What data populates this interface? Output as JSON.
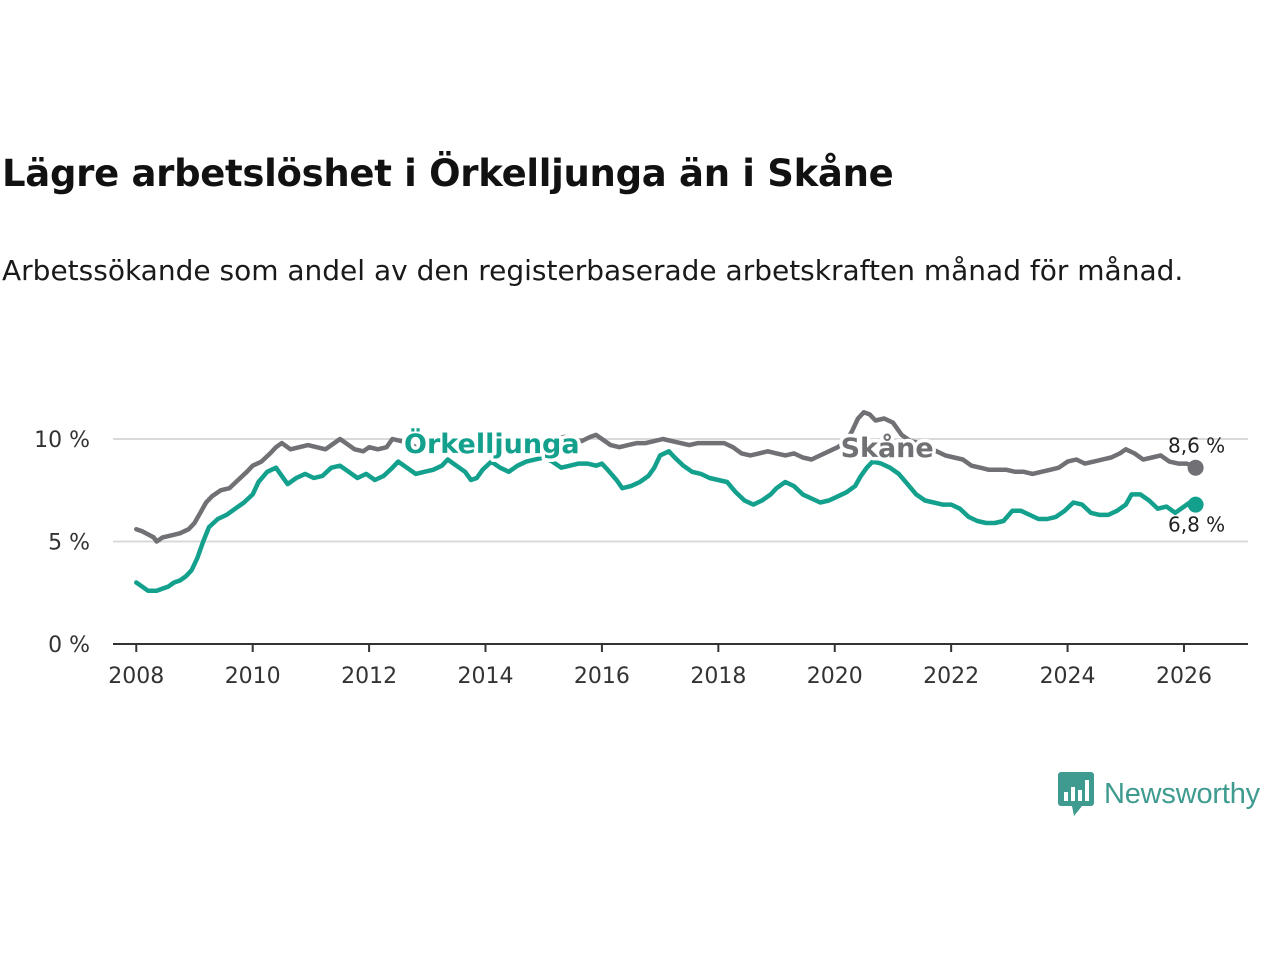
{
  "title": "Lägre arbetslöshet i Örkelljunga än i Skåne",
  "subtitle": "Arbetssökande som andel av den registerbaserade arbetskraften månad för månad.",
  "logo_text": "Newsworthy",
  "colors": {
    "orkelljunga": "#13a08c",
    "skane": "#707075",
    "grid": "#d9d9d9",
    "axis": "#333333"
  },
  "chart_data": {
    "type": "line",
    "title": "Lägre arbetslöshet i Örkelljunga än i Skåne",
    "xlabel": "",
    "ylabel": "",
    "xlim": [
      2007.6,
      2027.1
    ],
    "ylim": [
      0,
      10
    ],
    "y_ticks": [
      0,
      5,
      10
    ],
    "y_tick_labels": [
      "0 %",
      "5 %",
      "10 %"
    ],
    "x_ticks": [
      2008,
      2010,
      2012,
      2014,
      2016,
      2018,
      2020,
      2022,
      2024,
      2026
    ],
    "x_tick_labels": [
      "2008",
      "2010",
      "2012",
      "2014",
      "2016",
      "2018",
      "2020",
      "2022",
      "2024",
      "2026"
    ],
    "series": [
      {
        "name": "Skåne",
        "color": "#707075",
        "end_label": "8,6 %",
        "points": [
          [
            2008.0,
            5.6
          ],
          [
            2008.1,
            5.5
          ],
          [
            2008.3,
            5.2
          ],
          [
            2008.35,
            5.0
          ],
          [
            2008.45,
            5.2
          ],
          [
            2008.6,
            5.3
          ],
          [
            2008.75,
            5.4
          ],
          [
            2008.9,
            5.6
          ],
          [
            2009.0,
            5.9
          ],
          [
            2009.1,
            6.4
          ],
          [
            2009.2,
            6.9
          ],
          [
            2009.3,
            7.2
          ],
          [
            2009.45,
            7.5
          ],
          [
            2009.6,
            7.6
          ],
          [
            2009.75,
            8.0
          ],
          [
            2009.9,
            8.4
          ],
          [
            2010.0,
            8.7
          ],
          [
            2010.15,
            8.9
          ],
          [
            2010.3,
            9.3
          ],
          [
            2010.4,
            9.6
          ],
          [
            2010.5,
            9.8
          ],
          [
            2010.65,
            9.5
          ],
          [
            2010.8,
            9.6
          ],
          [
            2010.95,
            9.7
          ],
          [
            2011.1,
            9.6
          ],
          [
            2011.25,
            9.5
          ],
          [
            2011.4,
            9.8
          ],
          [
            2011.5,
            10.0
          ],
          [
            2011.6,
            9.8
          ],
          [
            2011.75,
            9.5
          ],
          [
            2011.9,
            9.4
          ],
          [
            2012.0,
            9.6
          ],
          [
            2012.15,
            9.5
          ],
          [
            2012.3,
            9.6
          ],
          [
            2012.4,
            10.0
          ],
          [
            2012.55,
            9.9
          ],
          [
            2012.7,
            9.8
          ],
          [
            2012.85,
            9.5
          ],
          [
            2013.0,
            9.6
          ],
          [
            2013.15,
            9.9
          ],
          [
            2013.3,
            10.2
          ],
          [
            2013.45,
            10.0
          ],
          [
            2013.6,
            9.8
          ],
          [
            2013.75,
            9.5
          ],
          [
            2013.9,
            9.4
          ],
          [
            2014.0,
            9.6
          ],
          [
            2014.15,
            9.8
          ],
          [
            2014.3,
            9.7
          ],
          [
            2014.45,
            9.8
          ],
          [
            2014.6,
            10.0
          ],
          [
            2014.75,
            9.8
          ],
          [
            2014.9,
            9.7
          ],
          [
            2015.05,
            9.9
          ],
          [
            2015.2,
            10.0
          ],
          [
            2015.35,
            10.1
          ],
          [
            2015.5,
            10.0
          ],
          [
            2015.65,
            9.9
          ],
          [
            2015.8,
            10.1
          ],
          [
            2015.9,
            10.2
          ],
          [
            2016.0,
            10.0
          ],
          [
            2016.15,
            9.7
          ],
          [
            2016.3,
            9.6
          ],
          [
            2016.45,
            9.7
          ],
          [
            2016.6,
            9.8
          ],
          [
            2016.75,
            9.8
          ],
          [
            2016.9,
            9.9
          ],
          [
            2017.05,
            10.0
          ],
          [
            2017.2,
            9.9
          ],
          [
            2017.35,
            9.8
          ],
          [
            2017.5,
            9.7
          ],
          [
            2017.65,
            9.8
          ],
          [
            2017.8,
            9.8
          ],
          [
            2017.95,
            9.8
          ],
          [
            2018.1,
            9.8
          ],
          [
            2018.25,
            9.6
          ],
          [
            2018.4,
            9.3
          ],
          [
            2018.55,
            9.2
          ],
          [
            2018.7,
            9.3
          ],
          [
            2018.85,
            9.4
          ],
          [
            2019.0,
            9.3
          ],
          [
            2019.15,
            9.2
          ],
          [
            2019.3,
            9.3
          ],
          [
            2019.45,
            9.1
          ],
          [
            2019.6,
            9.0
          ],
          [
            2019.75,
            9.2
          ],
          [
            2019.9,
            9.4
          ],
          [
            2020.05,
            9.6
          ],
          [
            2020.2,
            9.9
          ],
          [
            2020.3,
            10.4
          ],
          [
            2020.4,
            11.0
          ],
          [
            2020.5,
            11.3
          ],
          [
            2020.6,
            11.2
          ],
          [
            2020.7,
            10.9
          ],
          [
            2020.85,
            11.0
          ],
          [
            2021.0,
            10.8
          ],
          [
            2021.15,
            10.2
          ],
          [
            2021.3,
            9.9
          ],
          [
            2021.45,
            9.8
          ],
          [
            2021.6,
            9.6
          ],
          [
            2021.75,
            9.4
          ],
          [
            2021.9,
            9.2
          ],
          [
            2022.05,
            9.1
          ],
          [
            2022.2,
            9.0
          ],
          [
            2022.35,
            8.7
          ],
          [
            2022.5,
            8.6
          ],
          [
            2022.65,
            8.5
          ],
          [
            2022.8,
            8.5
          ],
          [
            2022.95,
            8.5
          ],
          [
            2023.1,
            8.4
          ],
          [
            2023.25,
            8.4
          ],
          [
            2023.4,
            8.3
          ],
          [
            2023.55,
            8.4
          ],
          [
            2023.7,
            8.5
          ],
          [
            2023.85,
            8.6
          ],
          [
            2024.0,
            8.9
          ],
          [
            2024.15,
            9.0
          ],
          [
            2024.3,
            8.8
          ],
          [
            2024.45,
            8.9
          ],
          [
            2024.6,
            9.0
          ],
          [
            2024.75,
            9.1
          ],
          [
            2024.9,
            9.3
          ],
          [
            2025.0,
            9.5
          ],
          [
            2025.15,
            9.3
          ],
          [
            2025.3,
            9.0
          ],
          [
            2025.45,
            9.1
          ],
          [
            2025.6,
            9.2
          ],
          [
            2025.75,
            8.9
          ],
          [
            2025.9,
            8.8
          ],
          [
            2026.05,
            8.8
          ],
          [
            2026.2,
            8.6
          ]
        ]
      },
      {
        "name": "Örkelljunga",
        "color": "#13a08c",
        "end_label": "6,8 %",
        "points": [
          [
            2008.0,
            3.0
          ],
          [
            2008.1,
            2.8
          ],
          [
            2008.2,
            2.6
          ],
          [
            2008.35,
            2.6
          ],
          [
            2008.45,
            2.7
          ],
          [
            2008.55,
            2.8
          ],
          [
            2008.65,
            3.0
          ],
          [
            2008.75,
            3.1
          ],
          [
            2008.85,
            3.3
          ],
          [
            2008.95,
            3.6
          ],
          [
            2009.05,
            4.2
          ],
          [
            2009.15,
            5.0
          ],
          [
            2009.25,
            5.7
          ],
          [
            2009.4,
            6.1
          ],
          [
            2009.55,
            6.3
          ],
          [
            2009.7,
            6.6
          ],
          [
            2009.85,
            6.9
          ],
          [
            2010.0,
            7.3
          ],
          [
            2010.1,
            7.9
          ],
          [
            2010.25,
            8.4
          ],
          [
            2010.4,
            8.6
          ],
          [
            2010.5,
            8.2
          ],
          [
            2010.6,
            7.8
          ],
          [
            2010.75,
            8.1
          ],
          [
            2010.9,
            8.3
          ],
          [
            2011.05,
            8.1
          ],
          [
            2011.2,
            8.2
          ],
          [
            2011.35,
            8.6
          ],
          [
            2011.5,
            8.7
          ],
          [
            2011.65,
            8.4
          ],
          [
            2011.8,
            8.1
          ],
          [
            2011.95,
            8.3
          ],
          [
            2012.1,
            8.0
          ],
          [
            2012.25,
            8.2
          ],
          [
            2012.4,
            8.6
          ],
          [
            2012.5,
            8.9
          ],
          [
            2012.65,
            8.6
          ],
          [
            2012.8,
            8.3
          ],
          [
            2012.95,
            8.4
          ],
          [
            2013.1,
            8.5
          ],
          [
            2013.25,
            8.7
          ],
          [
            2013.35,
            9.0
          ],
          [
            2013.5,
            8.7
          ],
          [
            2013.65,
            8.4
          ],
          [
            2013.75,
            8.0
          ],
          [
            2013.85,
            8.1
          ],
          [
            2013.95,
            8.5
          ],
          [
            2014.1,
            8.9
          ],
          [
            2014.25,
            8.6
          ],
          [
            2014.4,
            8.4
          ],
          [
            2014.55,
            8.7
          ],
          [
            2014.7,
            8.9
          ],
          [
            2014.85,
            9.0
          ],
          [
            2015.0,
            9.1
          ],
          [
            2015.15,
            8.9
          ],
          [
            2015.3,
            8.6
          ],
          [
            2015.45,
            8.7
          ],
          [
            2015.6,
            8.8
          ],
          [
            2015.75,
            8.8
          ],
          [
            2015.9,
            8.7
          ],
          [
            2016.0,
            8.8
          ],
          [
            2016.1,
            8.5
          ],
          [
            2016.25,
            8.0
          ],
          [
            2016.35,
            7.6
          ],
          [
            2016.5,
            7.7
          ],
          [
            2016.65,
            7.9
          ],
          [
            2016.8,
            8.2
          ],
          [
            2016.9,
            8.6
          ],
          [
            2017.0,
            9.2
          ],
          [
            2017.15,
            9.4
          ],
          [
            2017.25,
            9.1
          ],
          [
            2017.4,
            8.7
          ],
          [
            2017.55,
            8.4
          ],
          [
            2017.7,
            8.3
          ],
          [
            2017.85,
            8.1
          ],
          [
            2018.0,
            8.0
          ],
          [
            2018.15,
            7.9
          ],
          [
            2018.3,
            7.4
          ],
          [
            2018.45,
            7.0
          ],
          [
            2018.6,
            6.8
          ],
          [
            2018.75,
            7.0
          ],
          [
            2018.9,
            7.3
          ],
          [
            2019.0,
            7.6
          ],
          [
            2019.15,
            7.9
          ],
          [
            2019.3,
            7.7
          ],
          [
            2019.45,
            7.3
          ],
          [
            2019.6,
            7.1
          ],
          [
            2019.75,
            6.9
          ],
          [
            2019.9,
            7.0
          ],
          [
            2020.05,
            7.2
          ],
          [
            2020.2,
            7.4
          ],
          [
            2020.35,
            7.7
          ],
          [
            2020.45,
            8.2
          ],
          [
            2020.55,
            8.6
          ],
          [
            2020.65,
            8.9
          ],
          [
            2020.8,
            8.8
          ],
          [
            2020.95,
            8.6
          ],
          [
            2021.1,
            8.3
          ],
          [
            2021.25,
            7.8
          ],
          [
            2021.4,
            7.3
          ],
          [
            2021.55,
            7.0
          ],
          [
            2021.7,
            6.9
          ],
          [
            2021.85,
            6.8
          ],
          [
            2022.0,
            6.8
          ],
          [
            2022.15,
            6.6
          ],
          [
            2022.3,
            6.2
          ],
          [
            2022.45,
            6.0
          ],
          [
            2022.6,
            5.9
          ],
          [
            2022.75,
            5.9
          ],
          [
            2022.9,
            6.0
          ],
          [
            2023.05,
            6.5
          ],
          [
            2023.2,
            6.5
          ],
          [
            2023.35,
            6.3
          ],
          [
            2023.5,
            6.1
          ],
          [
            2023.65,
            6.1
          ],
          [
            2023.8,
            6.2
          ],
          [
            2023.95,
            6.5
          ],
          [
            2024.1,
            6.9
          ],
          [
            2024.25,
            6.8
          ],
          [
            2024.4,
            6.4
          ],
          [
            2024.55,
            6.3
          ],
          [
            2024.7,
            6.3
          ],
          [
            2024.85,
            6.5
          ],
          [
            2025.0,
            6.8
          ],
          [
            2025.1,
            7.3
          ],
          [
            2025.25,
            7.3
          ],
          [
            2025.4,
            7.0
          ],
          [
            2025.55,
            6.6
          ],
          [
            2025.7,
            6.7
          ],
          [
            2025.85,
            6.4
          ],
          [
            2026.0,
            6.7
          ],
          [
            2026.1,
            6.9
          ],
          [
            2026.2,
            6.8
          ]
        ]
      }
    ],
    "series_labels": [
      {
        "text": "Skåne",
        "x": 2020.1,
        "y": 9.6
      },
      {
        "text": "Örkelljunga",
        "x": 2012.6,
        "y": 9.8
      }
    ]
  }
}
